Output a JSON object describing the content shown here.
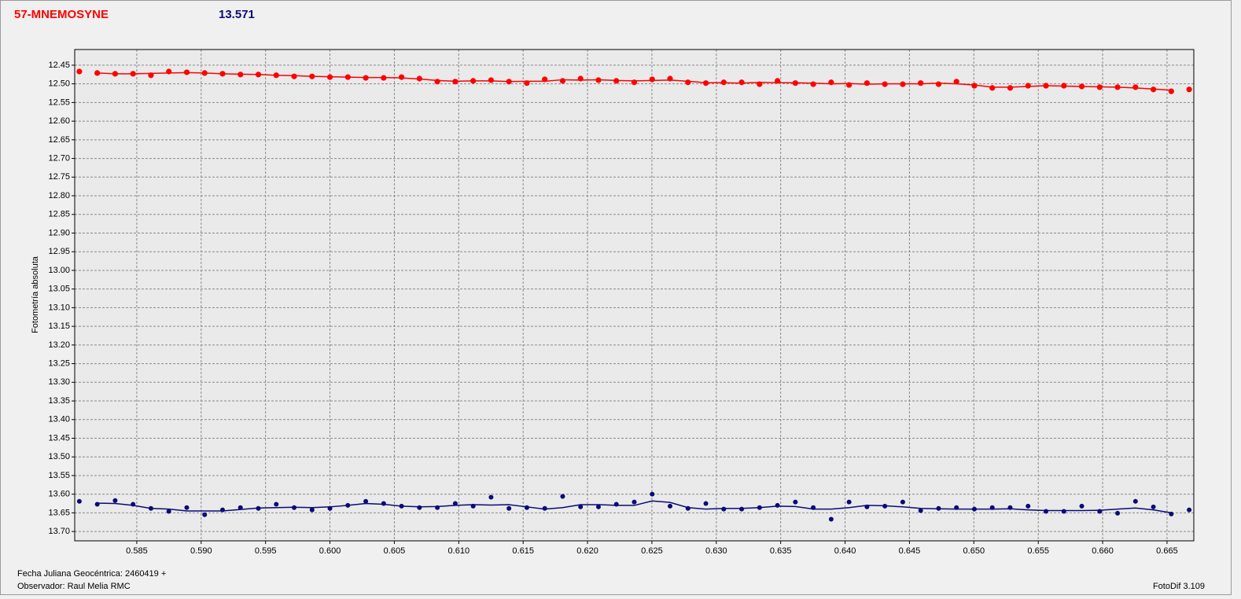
{
  "chart_data": {
    "type": "scatter",
    "title": "57-MNEMOSYNE",
    "subtitle": "13.571",
    "y_label": "Fotometría absoluta",
    "x_label": "Fecha Juliana Geocéntrica: 2460419 +",
    "observer": "Observador: Raul Melia RMC",
    "software": "FotoDif 3.109",
    "grid": true,
    "y_inverted": true,
    "xlim": [
      0.58018,
      0.66708
    ],
    "ylim": [
      12.408,
      13.725
    ],
    "xticks": [
      0.585,
      {
        "value": 0.59,
        "label": "0.590"
      },
      0.595,
      {
        "value": 0.6,
        "label": "0.600"
      },
      0.605,
      {
        "value": 0.61,
        "label": "0.610"
      },
      0.615,
      {
        "value": 0.62,
        "label": "0.620"
      },
      0.625,
      {
        "value": 0.63,
        "label": "0.630"
      },
      0.635,
      {
        "value": 0.64,
        "label": "0.640"
      },
      0.645,
      {
        "value": 0.65,
        "label": "0.650"
      },
      0.655,
      {
        "value": 0.66,
        "label": "0.660"
      },
      0.665
    ],
    "yticks": [
      12.45,
      {
        "value": 12.5,
        "label": "12.50"
      },
      12.55,
      {
        "value": 12.6,
        "label": "12.60"
      },
      12.65,
      {
        "value": 12.7,
        "label": "12.70"
      },
      12.75,
      {
        "value": 12.8,
        "label": "12.80"
      },
      12.85,
      {
        "value": 12.9,
        "label": "12.90"
      },
      12.95,
      {
        "value": 13,
        "label": "13.00"
      },
      13.05,
      {
        "value": 13.1,
        "label": "13.10"
      },
      13.15,
      {
        "value": 13.2,
        "label": "13.20"
      },
      13.25,
      {
        "value": 13.3,
        "label": "13.30"
      },
      13.35,
      {
        "value": 13.4,
        "label": "13.40"
      },
      13.45,
      {
        "value": 13.5,
        "label": "13.50"
      },
      13.55,
      {
        "value": 13.6,
        "label": "13.60"
      },
      13.65,
      {
        "value": 13.7,
        "label": "13.70"
      }
    ],
    "x": [
      0.58054,
      0.58193,
      0.58332,
      0.58471,
      0.5861,
      0.58749,
      0.58888,
      0.59027,
      0.59166,
      0.59305,
      0.59444,
      0.59583,
      0.59722,
      0.59861,
      0.6,
      0.60139,
      0.60278,
      0.60417,
      0.60556,
      0.60695,
      0.60834,
      0.60973,
      0.61112,
      0.61251,
      0.6139,
      0.61529,
      0.61668,
      0.61807,
      0.61946,
      0.62085,
      0.62224,
      0.62363,
      0.62502,
      0.62641,
      0.6278,
      0.62919,
      0.63058,
      0.63197,
      0.63336,
      0.63475,
      0.63614,
      0.63753,
      0.63892,
      0.64031,
      0.6417,
      0.64309,
      0.64448,
      0.64587,
      0.64726,
      0.64865,
      0.65004,
      0.65143,
      0.65282,
      0.65421,
      0.6556,
      0.65699,
      0.65838,
      0.65977,
      0.66116,
      0.66255,
      0.66394,
      0.66533,
      0.66672
    ],
    "series": [
      {
        "color": "#ff0000",
        "values": [
          12.467,
          12.471,
          12.473,
          12.473,
          12.477,
          12.467,
          12.469,
          12.471,
          12.473,
          12.475,
          12.475,
          12.477,
          12.48,
          12.48,
          12.482,
          12.482,
          12.484,
          12.484,
          12.482,
          12.486,
          12.494,
          12.494,
          12.492,
          12.49,
          12.494,
          12.498,
          12.488,
          12.492,
          12.486,
          12.49,
          12.492,
          12.496,
          12.488,
          12.486,
          12.496,
          12.498,
          12.496,
          12.496,
          12.501,
          12.492,
          12.498,
          12.501,
          12.496,
          12.503,
          12.498,
          12.501,
          12.501,
          12.498,
          12.501,
          12.494,
          12.505,
          12.511,
          12.511,
          12.505,
          12.505,
          12.505,
          12.507,
          12.509,
          12.509,
          12.509,
          12.515,
          12.52,
          12.515
        ],
        "smooth": [
          null,
          12.471,
          12.473,
          12.473,
          12.472,
          12.471,
          12.47,
          12.471,
          12.473,
          12.474,
          12.475,
          12.477,
          12.478,
          12.48,
          12.481,
          12.482,
          12.483,
          12.483,
          12.484,
          12.487,
          12.491,
          12.493,
          12.492,
          12.492,
          12.494,
          12.493,
          12.493,
          12.489,
          12.49,
          12.489,
          12.491,
          12.492,
          12.491,
          12.49,
          12.493,
          12.497,
          12.497,
          12.498,
          12.496,
          12.497,
          12.497,
          12.498,
          12.5,
          12.499,
          12.501,
          12.5,
          12.5,
          12.5,
          12.498,
          12.5,
          12.503,
          12.509,
          12.509,
          12.507,
          12.505,
          12.506,
          12.507,
          12.508,
          12.509,
          12.511,
          12.514,
          12.517,
          null
        ]
      },
      {
        "color": "#0a0a78",
        "values": [
          13.619,
          13.627,
          13.617,
          13.627,
          13.638,
          13.646,
          13.636,
          13.655,
          13.642,
          13.636,
          13.638,
          13.627,
          13.636,
          13.642,
          13.638,
          13.63,
          13.619,
          13.625,
          13.632,
          13.636,
          13.636,
          13.625,
          13.632,
          13.608,
          13.638,
          13.636,
          13.638,
          13.606,
          13.634,
          13.634,
          13.627,
          13.621,
          13.6,
          13.632,
          13.638,
          13.625,
          13.64,
          13.64,
          13.636,
          13.63,
          13.621,
          13.636,
          13.667,
          13.621,
          13.634,
          13.632,
          13.621,
          13.644,
          13.638,
          13.636,
          13.64,
          13.636,
          13.636,
          13.632,
          13.646,
          13.646,
          13.632,
          13.646,
          13.651,
          13.619,
          13.634,
          13.653,
          13.642
        ],
        "smooth": [
          null,
          13.624,
          13.625,
          13.63,
          13.638,
          13.64,
          13.645,
          13.645,
          13.645,
          13.641,
          13.637,
          13.636,
          13.635,
          13.636,
          13.634,
          13.63,
          13.625,
          13.627,
          13.632,
          13.634,
          13.633,
          13.63,
          13.628,
          13.629,
          13.628,
          13.634,
          13.64,
          13.636,
          13.628,
          13.628,
          13.63,
          13.63,
          13.618,
          13.622,
          13.636,
          13.64,
          13.638,
          13.638,
          13.636,
          13.632,
          13.633,
          13.64,
          13.64,
          13.636,
          13.63,
          13.631,
          13.634,
          13.638,
          13.639,
          13.64,
          13.64,
          13.64,
          13.639,
          13.642,
          13.644,
          13.644,
          13.644,
          13.643,
          13.64,
          13.637,
          13.642,
          13.65,
          null
        ]
      }
    ]
  }
}
